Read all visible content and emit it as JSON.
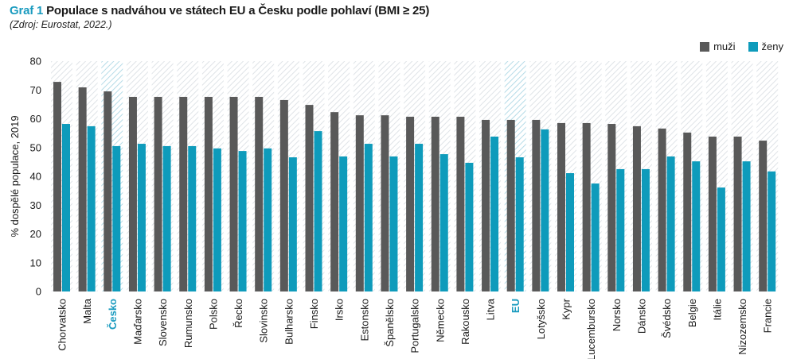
{
  "header": {
    "title_number": "Graf 1",
    "title_text": "Populace s nadváhou ve státech EU a Česku podle pohlaví (BMI ≥ 25)",
    "source": "(Zdroj: Eurostat, 2022.)"
  },
  "colors": {
    "accent": "#1a9bbf",
    "men": "#595959",
    "women": "#0e9bbb",
    "hatch": "#dfe3e7",
    "hatch_highlight": "#b5dbe7"
  },
  "chart_data": {
    "type": "bar",
    "title": "Populace s nadváhou ve státech EU a Česku podle pohlaví (BMI ≥ 25)",
    "ylabel": "% dospělé populace, 2019",
    "xlabel": "",
    "ylim": [
      0,
      80
    ],
    "yticks": [
      0,
      10,
      20,
      30,
      40,
      50,
      60,
      70,
      80
    ],
    "legend_position": "top-right",
    "highlighted": [
      "Česko",
      "EU"
    ],
    "categories": [
      "Chorvatsko",
      "Malta",
      "Česko",
      "Maďarsko",
      "Slovensko",
      "Rumunsko",
      "Polsko",
      "Řecko",
      "Slovinsko",
      "Bulharsko",
      "Finsko",
      "Irsko",
      "Estonsko",
      "Španělsko",
      "Portugalsko",
      "Německo",
      "Rakousko",
      "Litva",
      "EU",
      "Lotyšsko",
      "Kypr",
      "Lucembursko",
      "Norsko",
      "Dánsko",
      "Švédsko",
      "Belgie",
      "Itálie",
      "Nizozemsko",
      "Francie"
    ],
    "series": [
      {
        "name": "muži",
        "values": [
          72.8,
          70.9,
          69.5,
          67.6,
          67.6,
          67.6,
          67.6,
          67.6,
          67.6,
          66.5,
          64.8,
          62.3,
          61.2,
          61.2,
          60.7,
          60.7,
          60.7,
          59.6,
          59.6,
          59.6,
          58.5,
          58.5,
          58.2,
          57.4,
          56.6,
          55.2,
          53.8,
          53.8,
          52.4
        ]
      },
      {
        "name": "ženy",
        "values": [
          58.2,
          57.4,
          50.5,
          51.3,
          50.5,
          50.5,
          49.7,
          48.8,
          49.7,
          46.6,
          55.7,
          46.9,
          51.3,
          46.9,
          51.3,
          47.7,
          44.7,
          53.8,
          46.6,
          56.3,
          41.1,
          37.5,
          42.5,
          42.5,
          46.9,
          45.2,
          36.1,
          45.2,
          41.7
        ]
      }
    ]
  }
}
